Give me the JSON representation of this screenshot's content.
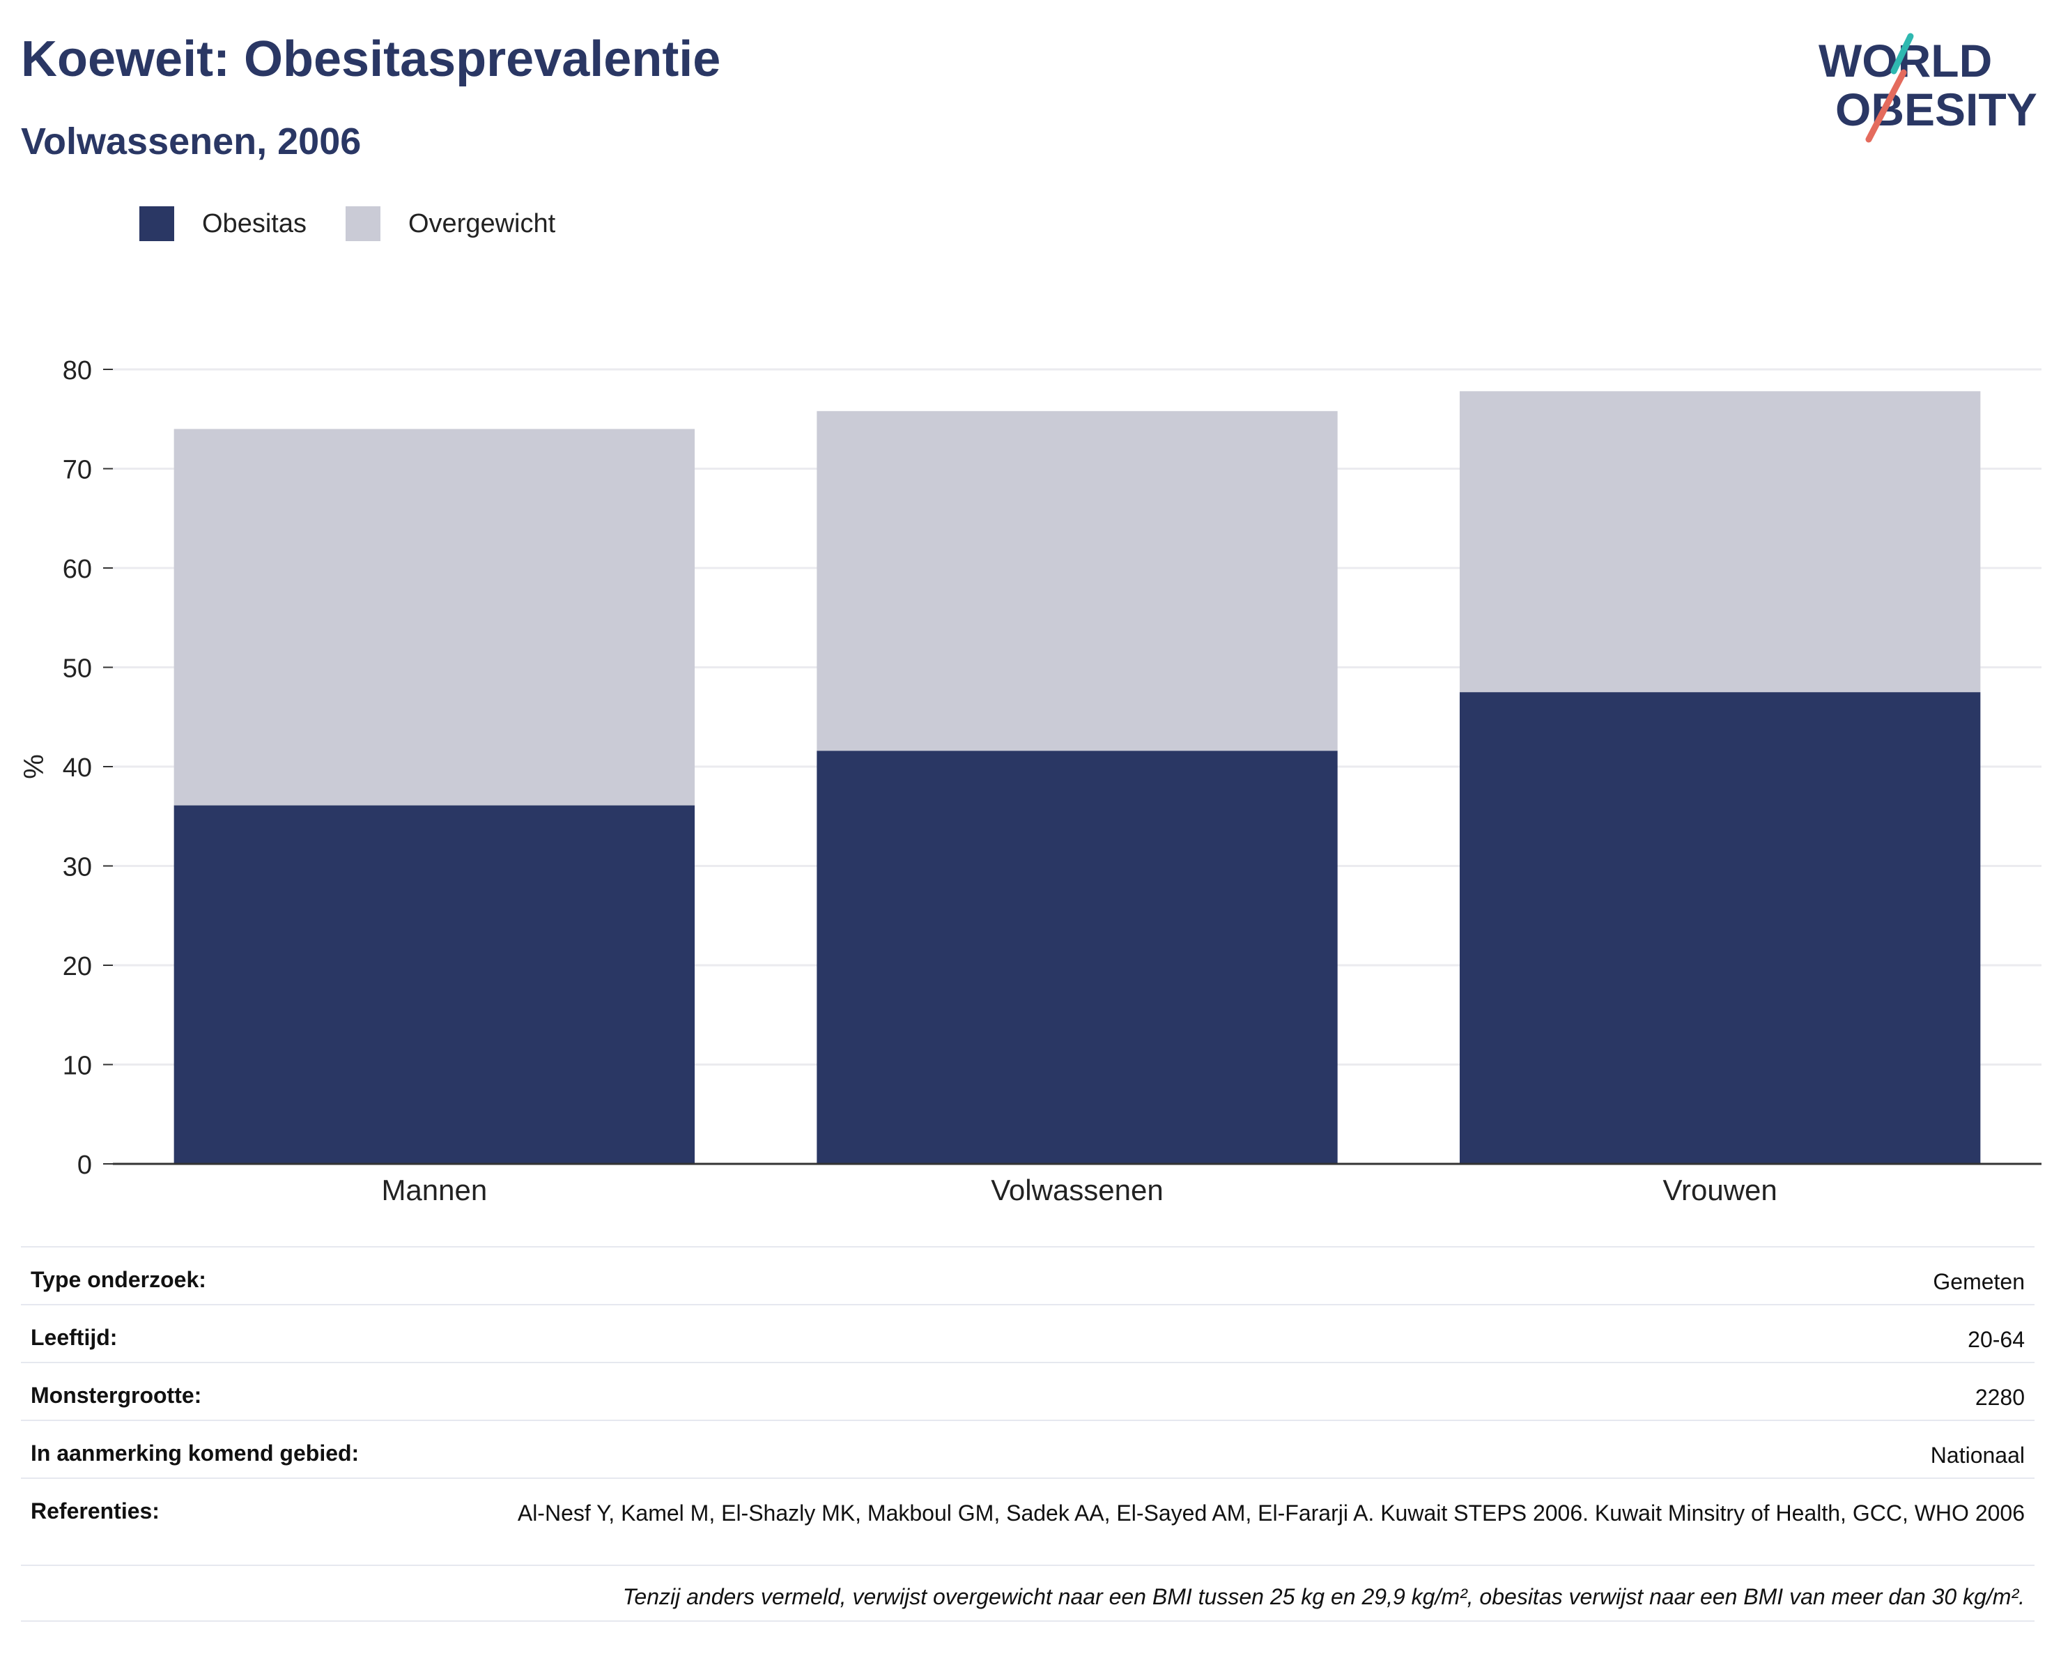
{
  "header": {
    "title": "Koeweit: Obesitasprevalentie",
    "subtitle": "Volwassenen, 2006"
  },
  "logo": {
    "line1": "WORLD",
    "line2": "OBESITY"
  },
  "legend": [
    {
      "label": "Obesitas",
      "color": "#2a3764"
    },
    {
      "label": "Overgewicht",
      "color": "#cacbd6"
    }
  ],
  "chart_data": {
    "type": "bar",
    "stacked": true,
    "categories": [
      "Mannen",
      "Volwassenen",
      "Vrouwen"
    ],
    "series": [
      {
        "name": "Obesitas",
        "values": [
          36.1,
          41.6,
          47.5
        ],
        "color": "#2a3764"
      },
      {
        "name": "Overgewicht",
        "values": [
          37.9,
          34.2,
          30.3
        ],
        "color": "#cacbd6"
      }
    ],
    "ylabel": "%",
    "ylim": [
      0,
      80
    ],
    "yticks": [
      0,
      10,
      20,
      30,
      40,
      50,
      60,
      70,
      80
    ],
    "grid": true,
    "legend_position": "top-left"
  },
  "meta": {
    "rows": [
      {
        "key": "Type onderzoek:",
        "value": "Gemeten"
      },
      {
        "key": "Leeftijd:",
        "value": "20-64"
      },
      {
        "key": "Monstergrootte:",
        "value": "2280"
      },
      {
        "key": "In aanmerking komend gebied:",
        "value": "Nationaal"
      },
      {
        "key": "Referenties:",
        "value": "Al-Nesf Y, Kamel M, El-Shazly MK, Makboul GM, Sadek AA, El-Sayed AM, El-Fararji A. Kuwait STEPS 2006. Kuwait Minsitry of Health, GCC, WHO 2006"
      }
    ],
    "note": "Tenzij anders vermeld, verwijst overgewicht naar een BMI tussen 25 kg en 29,9 kg/m², obesitas verwijst naar een BMI van meer dan 30 kg/m²."
  }
}
